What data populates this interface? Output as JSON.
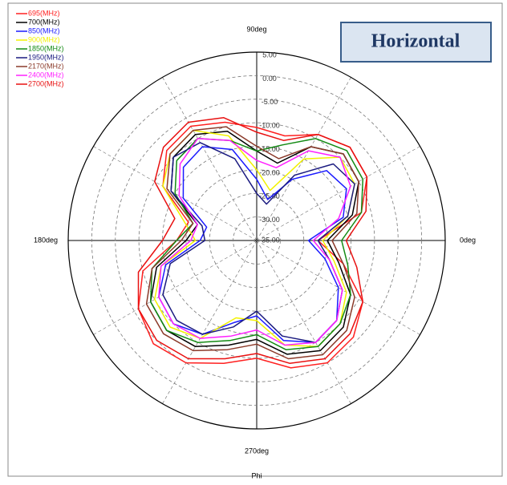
{
  "chart_data": {
    "type": "polar",
    "title": "Horizontal",
    "axis_label": "Phi",
    "rlim": [
      -35,
      5
    ],
    "rticks": [
      {
        "value": 5,
        "label": "5.00"
      },
      {
        "value": 0,
        "label": "0.00"
      },
      {
        "value": -5,
        "label": "-5.00"
      },
      {
        "value": -10,
        "label": "-10.00"
      },
      {
        "value": -15,
        "label": "-15.00"
      },
      {
        "value": -20,
        "label": "-20.00"
      },
      {
        "value": -25,
        "label": "-25.00"
      },
      {
        "value": -30,
        "label": "-30.00"
      },
      {
        "value": -35,
        "label": "-35.00"
      }
    ],
    "angle_ticks": [
      {
        "value": 0,
        "label": "0deg"
      },
      {
        "value": 90,
        "label": "90deg"
      },
      {
        "value": 180,
        "label": "180deg"
      },
      {
        "value": 270,
        "label": "270deg"
      }
    ],
    "theta": [
      0,
      15,
      30,
      45,
      60,
      75,
      90,
      105,
      120,
      135,
      150,
      165,
      180,
      195,
      210,
      225,
      240,
      255,
      270,
      285,
      300,
      315,
      330,
      345
    ],
    "series": [
      {
        "name": "695(MHz)",
        "color": "#ff2020",
        "values": [
          -22,
          -12,
          -8,
          -7,
          -9,
          -12,
          -11,
          -9,
          -7,
          -8,
          -12,
          -20,
          -18,
          -10,
          -6,
          -4,
          -5,
          -8,
          -10,
          -7,
          -5,
          -6,
          -9,
          -16
        ]
      },
      {
        "name": "700(MHz)",
        "color": "#000000",
        "values": [
          -20,
          -14,
          -10,
          -9,
          -12,
          -18,
          -16,
          -11,
          -9,
          -10,
          -14,
          -22,
          -20,
          -13,
          -9,
          -8,
          -9,
          -12,
          -14,
          -10,
          -8,
          -9,
          -12,
          -17
        ]
      },
      {
        "name": "850(MHz)",
        "color": "#1a1aff",
        "values": [
          -24,
          -16,
          -13,
          -14,
          -20,
          -26,
          -22,
          -15,
          -12,
          -13,
          -17,
          -24,
          -23,
          -15,
          -11,
          -10,
          -12,
          -17,
          -19,
          -13,
          -10,
          -11,
          -15,
          -20
        ]
      },
      {
        "name": "900(MHz)",
        "color": "#f2f200",
        "values": [
          -21,
          -15,
          -11,
          -10,
          -15,
          -24,
          -20,
          -12,
          -8,
          -9,
          -12,
          -19,
          -22,
          -14,
          -10,
          -9,
          -11,
          -18,
          -18,
          -12,
          -9,
          -10,
          -13,
          -18
        ]
      },
      {
        "name": "1850(MHz)",
        "color": "#138a13",
        "values": [
          -17,
          -12,
          -9,
          -8,
          -10,
          -14,
          -16,
          -13,
          -10,
          -11,
          -15,
          -21,
          -18,
          -12,
          -9,
          -8,
          -10,
          -13,
          -15,
          -11,
          -9,
          -10,
          -12,
          -15
        ]
      },
      {
        "name": "1950(MHz)",
        "color": "#1a1a80",
        "values": [
          -22,
          -15,
          -11,
          -12,
          -19,
          -27,
          -25,
          -17,
          -11,
          -10,
          -14,
          -23,
          -24,
          -16,
          -12,
          -11,
          -12,
          -16,
          -20,
          -14,
          -10,
          -11,
          -14,
          -19
        ]
      },
      {
        "name": "2170(MHz)",
        "color": "#8b3a2a",
        "values": [
          -19,
          -13,
          -10,
          -9,
          -12,
          -17,
          -15,
          -10,
          -8,
          -9,
          -13,
          -21,
          -19,
          -12,
          -8,
          -7,
          -8,
          -11,
          -13,
          -9,
          -7,
          -8,
          -11,
          -16
        ]
      },
      {
        "name": "2400(MHz)",
        "color": "#ff20ff",
        "values": [
          -23,
          -17,
          -12,
          -10,
          -13,
          -19,
          -18,
          -13,
          -10,
          -12,
          -16,
          -22,
          -21,
          -14,
          -11,
          -10,
          -11,
          -14,
          -16,
          -12,
          -10,
          -11,
          -14,
          -19
        ]
      },
      {
        "name": "2700(MHz)",
        "color": "#e81010",
        "values": [
          -16,
          -11,
          -8,
          -7,
          -9,
          -13,
          -12,
          -8,
          -6,
          -7,
          -10,
          -17,
          -15,
          -9,
          -6,
          -5,
          -6,
          -9,
          -11,
          -8,
          -6,
          -7,
          -9,
          -13
        ]
      }
    ]
  }
}
